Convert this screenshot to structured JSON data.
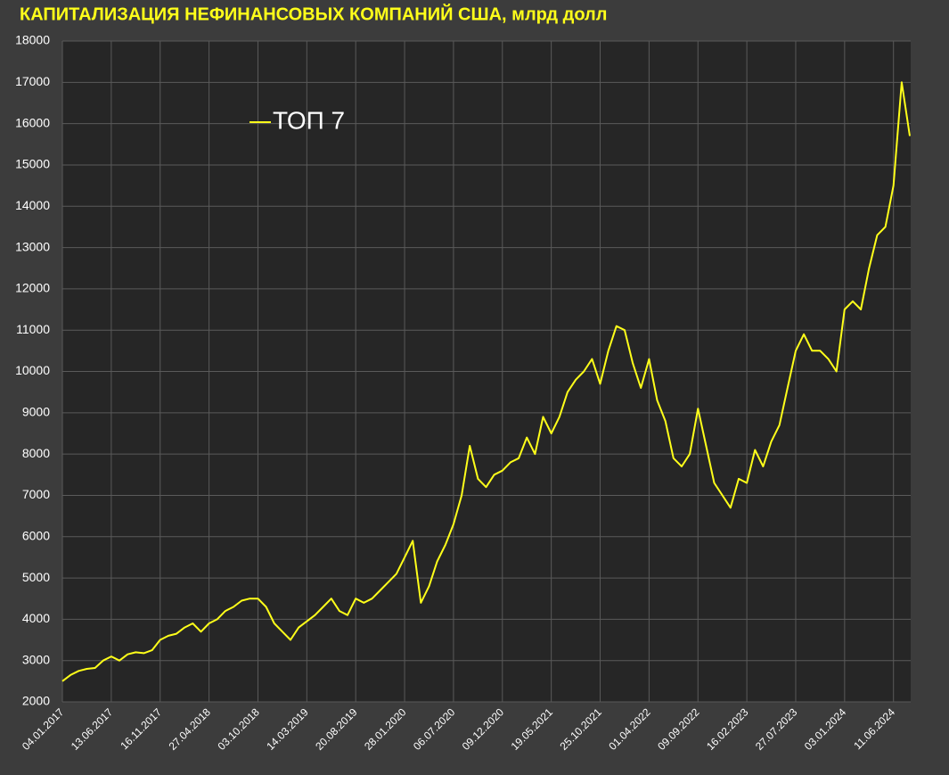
{
  "chart_data": {
    "type": "line",
    "title": "КАПИТАЛИЗАЦИЯ НЕФИНАНСОВЫХ КОМПАНИЙ США, млрд долл",
    "categories": [
      "04.01.2017",
      null,
      null,
      null,
      null,
      null,
      "13.06.2017",
      null,
      null,
      null,
      null,
      null,
      "16.11.2017",
      null,
      null,
      null,
      null,
      null,
      "27.04.2018",
      null,
      null,
      null,
      null,
      null,
      "03.10.2018",
      null,
      null,
      null,
      null,
      null,
      "14.03.2019",
      null,
      null,
      null,
      null,
      null,
      "20.08.2019",
      null,
      null,
      null,
      null,
      null,
      "28.01.2020",
      null,
      null,
      null,
      null,
      null,
      "06.07.2020",
      null,
      null,
      null,
      null,
      null,
      "09.12.2020",
      null,
      null,
      null,
      null,
      null,
      "19.05.2021",
      null,
      null,
      null,
      null,
      null,
      "25.10.2021",
      null,
      null,
      null,
      null,
      null,
      "01.04.2022",
      null,
      null,
      null,
      null,
      null,
      "09.09.2022",
      null,
      null,
      null,
      null,
      null,
      "16.02.2023",
      null,
      null,
      null,
      null,
      null,
      "27.07.2023",
      null,
      null,
      null,
      null,
      null,
      "03.01.2024",
      null,
      null,
      null,
      null,
      null,
      "11.06.2024",
      null,
      null
    ],
    "series": [
      {
        "name": "ТОП 7",
        "color": "#ffff1a",
        "values": [
          2500,
          2650,
          2750,
          2800,
          2820,
          3000,
          3100,
          3000,
          3150,
          3200,
          3180,
          3250,
          3500,
          3600,
          3650,
          3800,
          3900,
          3700,
          3900,
          4000,
          4200,
          4300,
          4450,
          4500,
          4500,
          4300,
          3900,
          3700,
          3500,
          3800,
          3950,
          4100,
          4300,
          4500,
          4200,
          4100,
          4500,
          4400,
          4500,
          4700,
          4900,
          5100,
          5500,
          5900,
          4400,
          4800,
          5400,
          5800,
          6300,
          7000,
          8200,
          7400,
          7200,
          7500,
          7600,
          7800,
          7900,
          8400,
          8000,
          8900,
          8500,
          8900,
          9500,
          9800,
          10000,
          10300,
          9700,
          10500,
          11100,
          11000,
          10200,
          9600,
          10300,
          9300,
          8800,
          7900,
          7700,
          8000,
          9100,
          8200,
          7300,
          7000,
          6700,
          7400,
          7300,
          8100,
          7700,
          8300,
          8700,
          9600,
          10500,
          10900,
          10500,
          10500,
          10300,
          10000,
          11500,
          11700,
          11500,
          12500,
          13300,
          13500,
          14500,
          17000,
          15700
        ]
      }
    ],
    "ylim": [
      2000,
      18000
    ],
    "yticks": [
      2000,
      3000,
      4000,
      5000,
      6000,
      7000,
      8000,
      9000,
      10000,
      11000,
      12000,
      13000,
      14000,
      15000,
      16000,
      17000,
      18000
    ],
    "grid": true,
    "legend": "upper left"
  }
}
